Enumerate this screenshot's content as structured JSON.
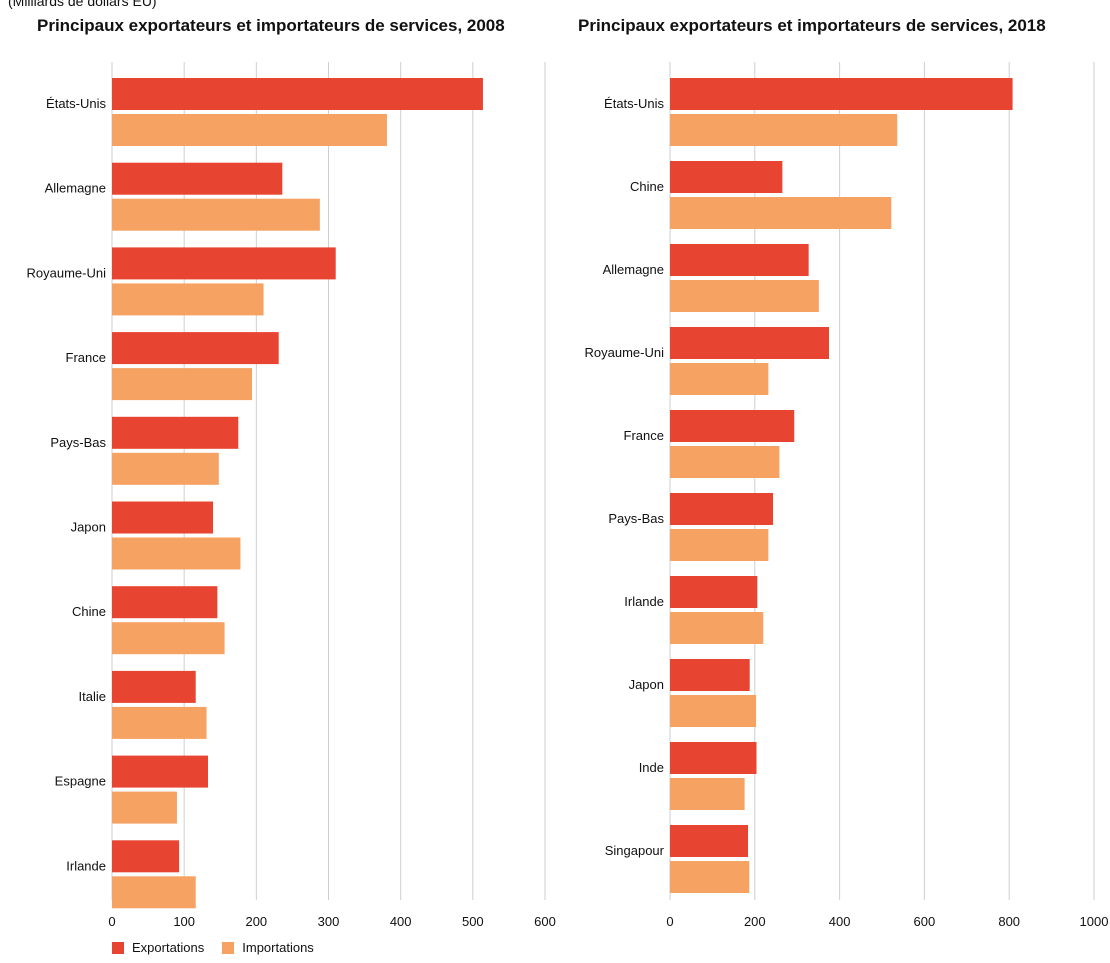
{
  "unit_note": "(Milliards de dollars EU)",
  "colors": {
    "exports": "#e84432",
    "imports": "#f6a262",
    "grid": "#cfcfcf"
  },
  "legend": {
    "exports_label": "Exportations",
    "imports_label": "Importations"
  },
  "chart_data": [
    {
      "type": "bar",
      "orientation": "horizontal",
      "title": "Principaux exportateurs et importateurs de services, 2008",
      "categories": [
        "États-Unis",
        "Allemagne",
        "Royaume-Uni",
        "France",
        "Pays-Bas",
        "Japon",
        "Chine",
        "Italie",
        "Espagne",
        "Irlande"
      ],
      "series": [
        {
          "name": "Exportations",
          "values": [
            514,
            236,
            310,
            231,
            175,
            140,
            146,
            116,
            133,
            93
          ]
        },
        {
          "name": "Importations",
          "values": [
            381,
            288,
            210,
            194,
            148,
            178,
            156,
            131,
            90,
            116
          ]
        }
      ],
      "xlim": [
        0,
        600
      ],
      "xticks": [
        0,
        100,
        200,
        300,
        400,
        500,
        600
      ],
      "grid": true
    },
    {
      "type": "bar",
      "orientation": "horizontal",
      "title": "Principaux exportateurs et importateurs de services, 2018",
      "categories": [
        "États-Unis",
        "Chine",
        "Allemagne",
        "Royaume-Uni",
        "France",
        "Pays-Bas",
        "Irlande",
        "Japon",
        "Inde",
        "Singapour"
      ],
      "series": [
        {
          "name": "Exportations",
          "values": [
            808,
            265,
            327,
            375,
            293,
            243,
            206,
            188,
            204,
            184
          ]
        },
        {
          "name": "Importations",
          "values": [
            536,
            522,
            351,
            232,
            258,
            232,
            220,
            203,
            176,
            187
          ]
        }
      ],
      "xlim": [
        0,
        1000
      ],
      "xticks": [
        0,
        200,
        400,
        600,
        800,
        1000
      ],
      "grid": true
    }
  ]
}
